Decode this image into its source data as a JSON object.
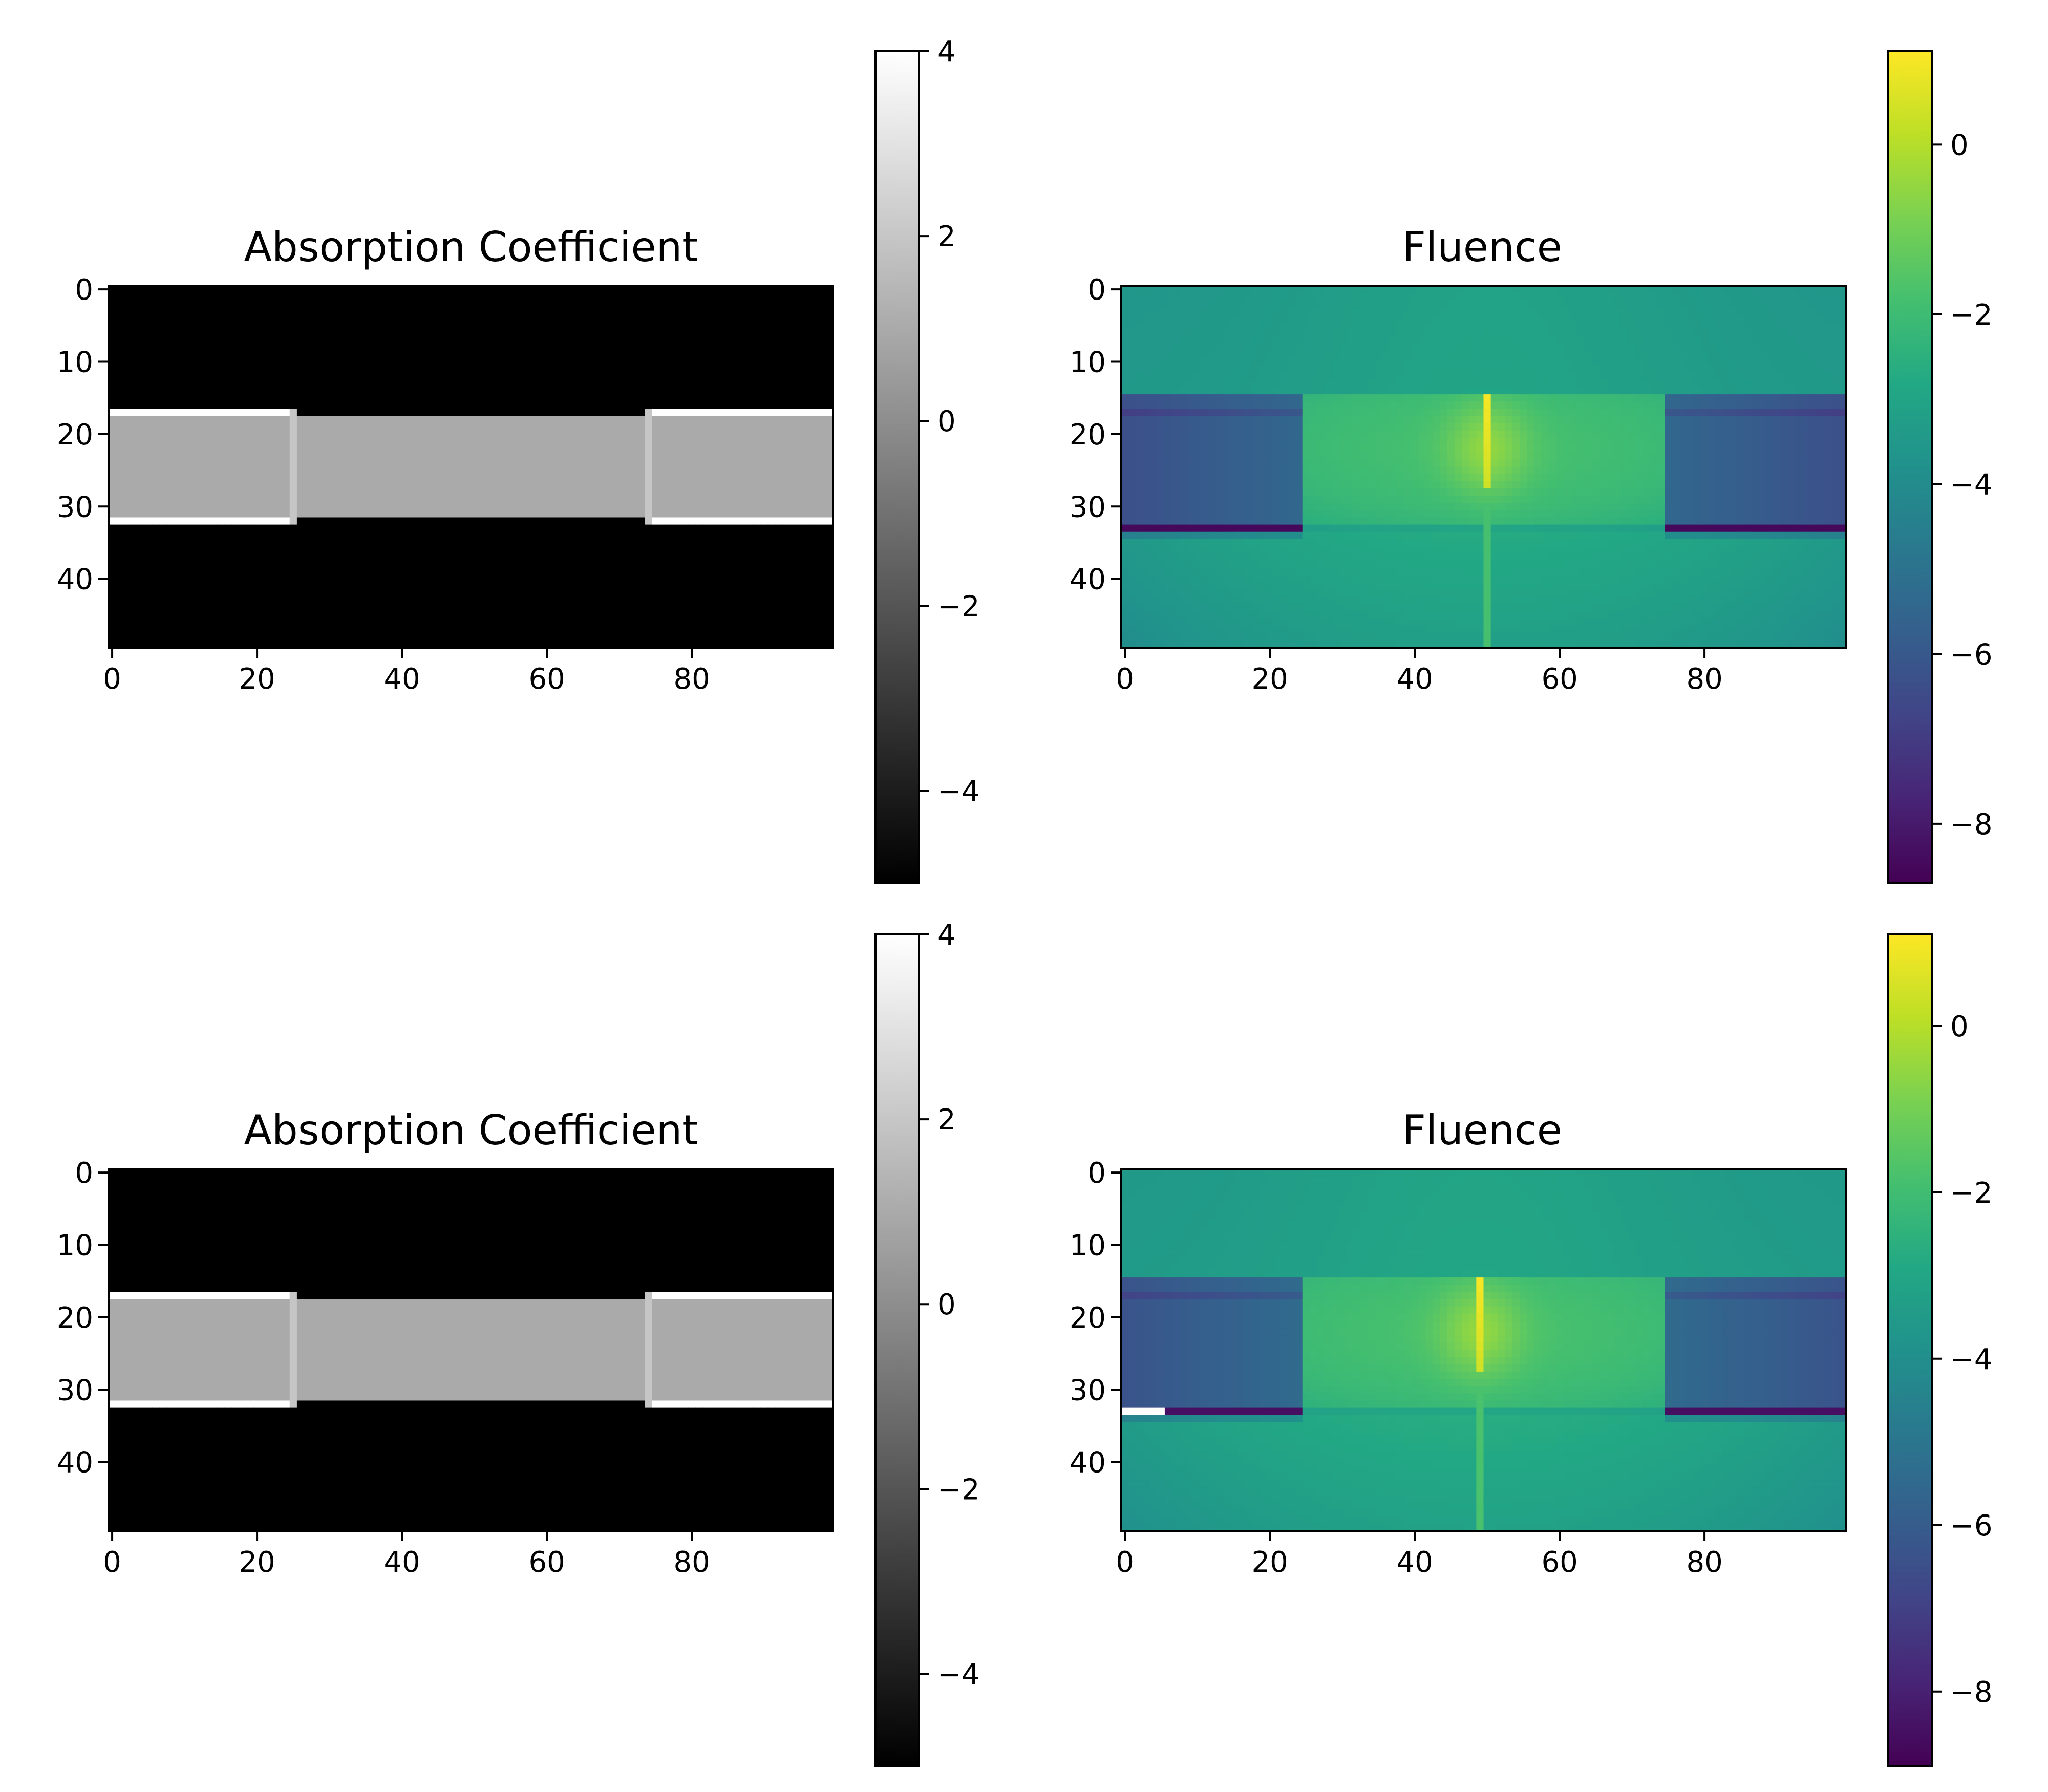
{
  "chart_data": [
    {
      "type": "heatmap",
      "title": "Absorption Coefficient",
      "colormap": "gray",
      "grid": false,
      "legend": "none",
      "grid_shape": [
        50,
        100
      ],
      "xlim": [
        0,
        99
      ],
      "ylim": [
        49,
        0
      ],
      "x_ticks": [
        "0",
        "20",
        "40",
        "60",
        "80"
      ],
      "y_ticks": [
        "0",
        "10",
        "20",
        "30",
        "40"
      ],
      "colorbar": {
        "range": [
          -5,
          4
        ],
        "ticks": [
          "−4",
          "−2",
          "0",
          "2",
          "4"
        ]
      },
      "regions": [
        {
          "label": "background",
          "value": -5
        },
        {
          "label": "center band (rows 18–31)",
          "value": 1
        },
        {
          "label": "edge lines (rows 17, 32; cols 0–24, 75–99)",
          "value": 4
        },
        {
          "label": "column 25 and 74 band edges",
          "value": 2
        }
      ]
    },
    {
      "type": "heatmap",
      "title": "Fluence",
      "colormap": "viridis",
      "grid": false,
      "legend": "none",
      "grid_shape": [
        50,
        100
      ],
      "xlim": [
        0,
        99
      ],
      "ylim": [
        49,
        0
      ],
      "x_ticks": [
        "0",
        "20",
        "40",
        "60",
        "80"
      ],
      "y_ticks": [
        "0",
        "10",
        "20",
        "30",
        "40"
      ],
      "colorbar": {
        "range": [
          -8.7,
          1.1
        ],
        "ticks": [
          "−8",
          "−6",
          "−4",
          "−2",
          "0"
        ]
      },
      "source": {
        "column": 50,
        "rows": [
          15,
          27
        ],
        "peak_value": 1.0
      },
      "value_summary": {
        "top_region": -3.5,
        "center": -1.8,
        "side_bands": -6.0,
        "bottom_line": -8.5
      }
    },
    {
      "type": "heatmap",
      "title": "Absorption Coefficient",
      "colormap": "gray",
      "grid": false,
      "legend": "none",
      "grid_shape": [
        50,
        100
      ],
      "xlim": [
        0,
        99
      ],
      "ylim": [
        49,
        0
      ],
      "x_ticks": [
        "0",
        "20",
        "40",
        "60",
        "80"
      ],
      "y_ticks": [
        "0",
        "10",
        "20",
        "30",
        "40"
      ],
      "colorbar": {
        "range": [
          -5,
          4
        ],
        "ticks": [
          "−4",
          "−2",
          "0",
          "2",
          "4"
        ]
      },
      "regions": [
        {
          "label": "background",
          "value": -5
        },
        {
          "label": "center band (rows 18–31)",
          "value": 1
        },
        {
          "label": "edge lines (rows 17, 32; cols 0–24, 75–99)",
          "value": 4
        },
        {
          "label": "column 25 and 74 band edges",
          "value": 2
        }
      ]
    },
    {
      "type": "heatmap",
      "title": "Fluence",
      "colormap": "viridis",
      "grid": false,
      "legend": "none",
      "grid_shape": [
        50,
        100
      ],
      "xlim": [
        0,
        99
      ],
      "ylim": [
        49,
        0
      ],
      "x_ticks": [
        "0",
        "20",
        "40",
        "60",
        "80"
      ],
      "y_ticks": [
        "0",
        "10",
        "20",
        "30",
        "40"
      ],
      "colorbar": {
        "range": [
          -8.9,
          1.1
        ],
        "ticks": [
          "−8",
          "−6",
          "−4",
          "−2",
          "0"
        ]
      },
      "source": {
        "column": 49,
        "rows": [
          15,
          27
        ],
        "peak_value": 1.0
      },
      "value_summary": {
        "top_region": -3.5,
        "center": -1.8,
        "side_bands": -6.0,
        "bottom_line": -8.5
      },
      "marker": {
        "row": 33,
        "columns": [
          0,
          5
        ]
      }
    }
  ]
}
